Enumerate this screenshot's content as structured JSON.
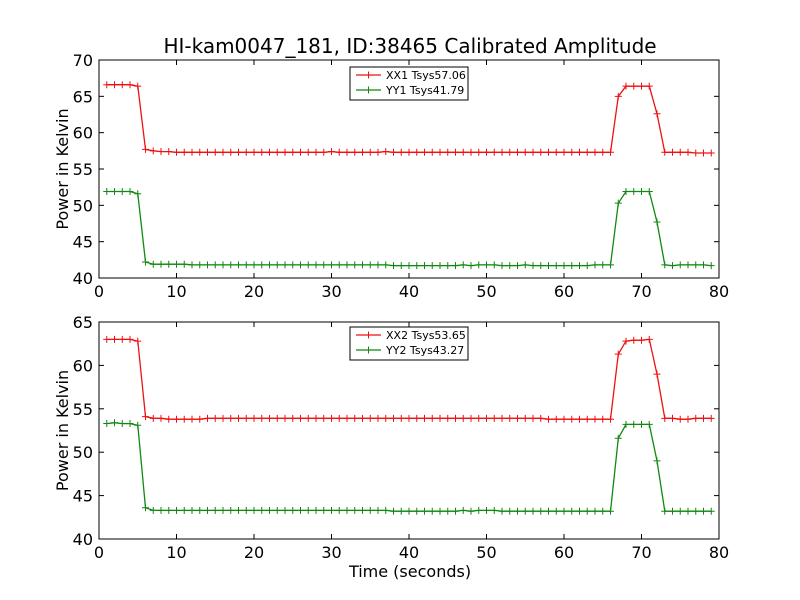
{
  "figure": {
    "title": "HI-kam0047_181, ID:38465 Calibrated Amplitude",
    "xlabel": "Time (seconds)"
  },
  "colors": {
    "xx": "#ee1111",
    "yy": "#118811"
  },
  "chart_data": [
    {
      "type": "line",
      "ylabel": "Power in Kelvin",
      "xlim": [
        0,
        80
      ],
      "ylim": [
        40,
        70
      ],
      "xticks": [
        "0",
        "10",
        "20",
        "30",
        "40",
        "50",
        "60",
        "70",
        "80"
      ],
      "yticks": [
        "40",
        "45",
        "50",
        "55",
        "60",
        "65",
        "70"
      ],
      "legend_position": "top-center",
      "x": [
        1,
        2,
        3,
        4,
        5,
        6,
        7,
        8,
        9,
        10,
        11,
        12,
        13,
        14,
        15,
        16,
        17,
        18,
        19,
        20,
        21,
        22,
        23,
        24,
        25,
        26,
        27,
        28,
        29,
        30,
        31,
        32,
        33,
        34,
        35,
        36,
        37,
        38,
        39,
        40,
        41,
        42,
        43,
        44,
        45,
        46,
        47,
        48,
        49,
        50,
        51,
        52,
        53,
        54,
        55,
        56,
        57,
        58,
        59,
        60,
        61,
        62,
        63,
        64,
        65,
        66,
        67,
        68,
        69,
        70,
        71,
        72,
        73,
        74,
        75,
        76,
        77,
        78,
        79
      ],
      "series": [
        {
          "name": "XX1 Tsys57.06",
          "color_key": "xx",
          "values": [
            66.6,
            66.6,
            66.6,
            66.6,
            66.4,
            57.7,
            57.5,
            57.4,
            57.4,
            57.3,
            57.3,
            57.3,
            57.3,
            57.3,
            57.3,
            57.3,
            57.3,
            57.3,
            57.3,
            57.3,
            57.3,
            57.3,
            57.3,
            57.3,
            57.3,
            57.3,
            57.3,
            57.3,
            57.3,
            57.4,
            57.3,
            57.3,
            57.3,
            57.3,
            57.3,
            57.3,
            57.4,
            57.3,
            57.3,
            57.3,
            57.3,
            57.3,
            57.3,
            57.3,
            57.3,
            57.3,
            57.3,
            57.3,
            57.3,
            57.3,
            57.3,
            57.3,
            57.3,
            57.3,
            57.3,
            57.3,
            57.3,
            57.3,
            57.3,
            57.3,
            57.3,
            57.3,
            57.3,
            57.3,
            57.3,
            57.3,
            65.0,
            66.4,
            66.4,
            66.4,
            66.4,
            62.6,
            57.3,
            57.3,
            57.3,
            57.3,
            57.2,
            57.2,
            57.2
          ]
        },
        {
          "name": "YY1 Tsys41.79",
          "color_key": "yy",
          "values": [
            51.9,
            51.9,
            51.9,
            51.9,
            51.6,
            42.2,
            41.9,
            41.9,
            41.9,
            41.9,
            41.9,
            41.8,
            41.8,
            41.8,
            41.8,
            41.8,
            41.8,
            41.8,
            41.8,
            41.8,
            41.8,
            41.8,
            41.8,
            41.8,
            41.8,
            41.8,
            41.8,
            41.8,
            41.8,
            41.8,
            41.8,
            41.8,
            41.8,
            41.8,
            41.8,
            41.8,
            41.8,
            41.7,
            41.7,
            41.7,
            41.7,
            41.7,
            41.7,
            41.7,
            41.7,
            41.7,
            41.8,
            41.7,
            41.8,
            41.8,
            41.8,
            41.7,
            41.7,
            41.7,
            41.8,
            41.7,
            41.7,
            41.7,
            41.7,
            41.7,
            41.7,
            41.7,
            41.7,
            41.8,
            41.8,
            41.8,
            50.3,
            51.9,
            51.9,
            51.9,
            51.9,
            47.7,
            41.8,
            41.7,
            41.8,
            41.8,
            41.8,
            41.8,
            41.7
          ]
        }
      ]
    },
    {
      "type": "line",
      "ylabel": "Power in Kelvin",
      "xlim": [
        0,
        80
      ],
      "ylim": [
        40,
        65
      ],
      "xticks": [
        "0",
        "10",
        "20",
        "30",
        "40",
        "50",
        "60",
        "70",
        "80"
      ],
      "yticks": [
        "40",
        "45",
        "50",
        "55",
        "60",
        "65"
      ],
      "legend_position": "top-center",
      "x": [
        1,
        2,
        3,
        4,
        5,
        6,
        7,
        8,
        9,
        10,
        11,
        12,
        13,
        14,
        15,
        16,
        17,
        18,
        19,
        20,
        21,
        22,
        23,
        24,
        25,
        26,
        27,
        28,
        29,
        30,
        31,
        32,
        33,
        34,
        35,
        36,
        37,
        38,
        39,
        40,
        41,
        42,
        43,
        44,
        45,
        46,
        47,
        48,
        49,
        50,
        51,
        52,
        53,
        54,
        55,
        56,
        57,
        58,
        59,
        60,
        61,
        62,
        63,
        64,
        65,
        66,
        67,
        68,
        69,
        70,
        71,
        72,
        73,
        74,
        75,
        76,
        77,
        78,
        79
      ],
      "series": [
        {
          "name": "XX2 Tsys53.65",
          "color_key": "xx",
          "values": [
            63.0,
            63.0,
            63.0,
            63.0,
            62.8,
            54.1,
            53.9,
            53.9,
            53.8,
            53.8,
            53.8,
            53.8,
            53.8,
            53.9,
            53.9,
            53.9,
            53.9,
            53.9,
            53.9,
            53.9,
            53.9,
            53.9,
            53.9,
            53.9,
            53.9,
            53.9,
            53.9,
            53.9,
            53.9,
            53.9,
            53.9,
            53.9,
            53.9,
            53.9,
            53.9,
            53.9,
            53.9,
            53.9,
            53.9,
            53.9,
            53.9,
            53.9,
            53.9,
            53.9,
            53.9,
            53.9,
            53.9,
            53.9,
            53.9,
            53.9,
            53.9,
            53.9,
            53.9,
            53.9,
            53.9,
            53.9,
            53.9,
            53.8,
            53.8,
            53.8,
            53.8,
            53.8,
            53.8,
            53.8,
            53.8,
            53.8,
            61.3,
            62.8,
            62.9,
            62.9,
            63.0,
            59.0,
            53.9,
            53.9,
            53.8,
            53.8,
            53.9,
            53.9,
            53.9
          ]
        },
        {
          "name": "YY2 Tsys43.27",
          "color_key": "yy",
          "values": [
            53.3,
            53.4,
            53.3,
            53.3,
            53.1,
            43.6,
            43.3,
            43.3,
            43.3,
            43.3,
            43.3,
            43.3,
            43.3,
            43.3,
            43.3,
            43.3,
            43.3,
            43.3,
            43.3,
            43.3,
            43.3,
            43.3,
            43.3,
            43.3,
            43.3,
            43.3,
            43.3,
            43.3,
            43.3,
            43.3,
            43.3,
            43.3,
            43.3,
            43.3,
            43.3,
            43.3,
            43.3,
            43.2,
            43.2,
            43.2,
            43.2,
            43.2,
            43.2,
            43.2,
            43.2,
            43.2,
            43.3,
            43.2,
            43.3,
            43.3,
            43.3,
            43.2,
            43.2,
            43.2,
            43.2,
            43.2,
            43.2,
            43.2,
            43.2,
            43.2,
            43.2,
            43.2,
            43.2,
            43.2,
            43.2,
            43.2,
            51.6,
            53.2,
            53.2,
            53.2,
            53.2,
            49.0,
            43.2,
            43.2,
            43.2,
            43.2,
            43.2,
            43.2,
            43.2
          ]
        }
      ]
    }
  ]
}
